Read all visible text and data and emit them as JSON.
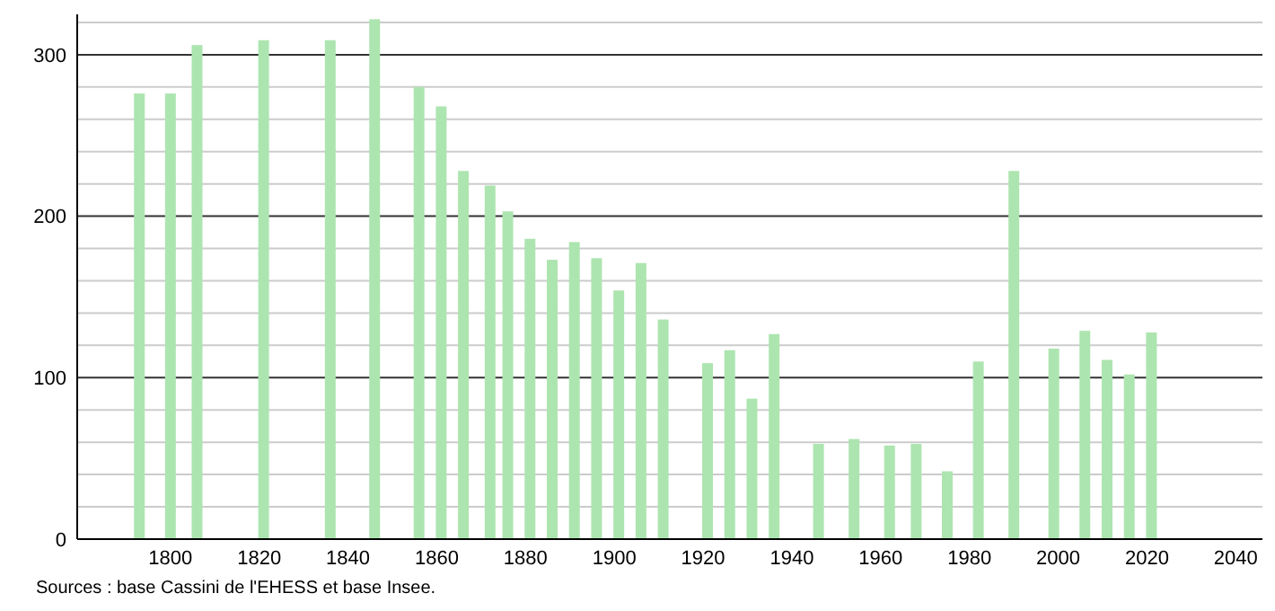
{
  "chart_data": {
    "type": "bar",
    "x": [
      1793,
      1800,
      1806,
      1821,
      1836,
      1846,
      1856,
      1861,
      1866,
      1872,
      1876,
      1881,
      1886,
      1891,
      1896,
      1901,
      1906,
      1911,
      1921,
      1926,
      1931,
      1936,
      1946,
      1954,
      1962,
      1968,
      1975,
      1982,
      1990,
      1999,
      2006,
      2011,
      2016,
      2021
    ],
    "values": [
      276,
      276,
      306,
      309,
      309,
      322,
      280,
      268,
      228,
      219,
      203,
      186,
      173,
      184,
      174,
      154,
      171,
      136,
      109,
      117,
      87,
      127,
      59,
      62,
      58,
      59,
      42,
      110,
      228,
      118,
      129,
      111,
      102,
      128
    ],
    "color": "#ade5b0",
    "xlim": [
      1779,
      2046
    ],
    "xticks": [
      1800,
      1820,
      1840,
      1860,
      1880,
      1900,
      1920,
      1940,
      1960,
      1980,
      2000,
      2020,
      2040
    ],
    "ylim": [
      0,
      325
    ],
    "yticks": [
      0,
      {
        "value": 20,
        "label": null
      },
      {
        "value": 40,
        "label": null
      },
      {
        "value": 60,
        "label": null
      },
      {
        "value": 80,
        "label": null
      },
      100,
      {
        "value": 120,
        "label": null
      },
      {
        "value": 140,
        "label": null
      },
      {
        "value": 160,
        "label": null
      },
      {
        "value": 180,
        "label": null
      },
      200,
      {
        "value": 220,
        "label": null
      },
      {
        "value": 240,
        "label": null
      },
      {
        "value": 260,
        "label": null
      },
      {
        "value": 280,
        "label": null
      },
      300,
      {
        "value": 320,
        "label": null
      }
    ],
    "grid": true,
    "annotations": [
      "Sources : base Cassini de l'EHESS et base Insee."
    ]
  }
}
